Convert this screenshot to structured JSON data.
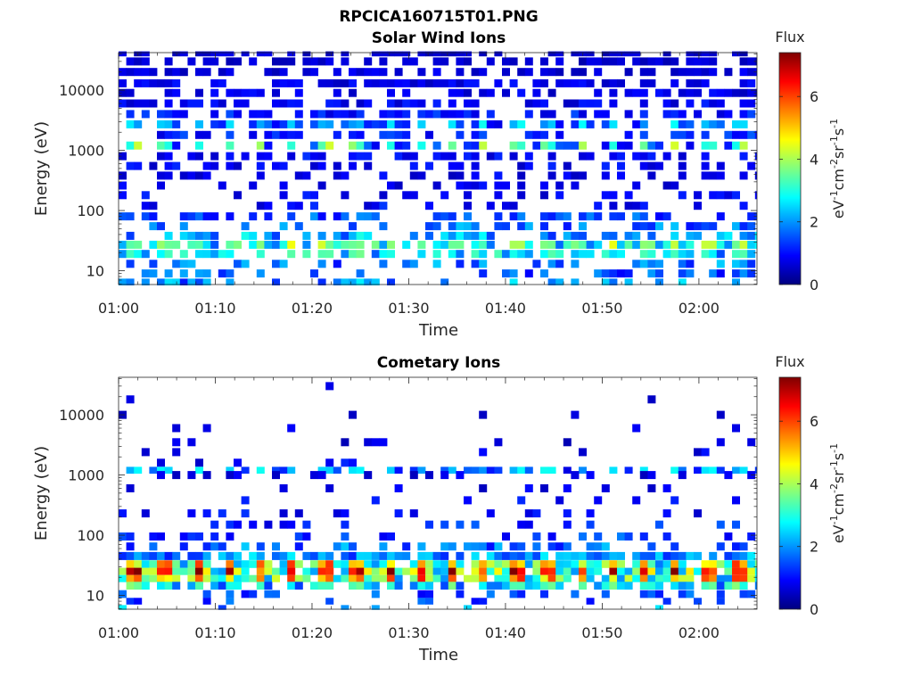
{
  "figure": {
    "title": "RPCICA160715T01.PNG"
  },
  "colormap": {
    "name": "jet",
    "low": "#00007f",
    "high": "#7f0000"
  },
  "chart_data": [
    {
      "type": "heatmap",
      "title": "Solar Wind Ions",
      "xlabel": "Time",
      "ylabel": "Energy (eV)",
      "x_ticks": [
        "01:00",
        "01:10",
        "01:20",
        "01:30",
        "01:40",
        "01:50",
        "02:00"
      ],
      "xlim": [
        "01:00",
        "02:06"
      ],
      "y_scale": "log",
      "y_ticks": [
        "10",
        "100",
        "1000",
        "10000"
      ],
      "ylim": [
        5.9,
        42000
      ],
      "colorbar": {
        "title": "Flux",
        "label_base": "eV",
        "label_parts": [
          "-1",
          "cm",
          "-2",
          "sr",
          "-1",
          "s",
          "-1"
        ],
        "range": [
          0,
          7.4
        ],
        "ticks": [
          "0",
          "2",
          "4",
          "6"
        ]
      },
      "peak_period_min": 3.3,
      "rows": [
        {
          "energy_ev": 40000,
          "level": 0.6,
          "fill": 0.48
        },
        {
          "energy_ev": 30000,
          "level": 0.6,
          "fill": 0.55
        },
        {
          "energy_ev": 20000,
          "level": 0.7,
          "fill": 0.58
        },
        {
          "energy_ev": 13000,
          "level": 0.8,
          "fill": 0.58
        },
        {
          "energy_ev": 9000,
          "level": 0.8,
          "fill": 0.56
        },
        {
          "energy_ev": 6000,
          "level": 0.9,
          "fill": 0.55
        },
        {
          "energy_ev": 4000,
          "level": 1.1,
          "fill": 0.55
        },
        {
          "energy_ev": 2700,
          "level": 1.3,
          "fill": 0.58,
          "peak": 2.4
        },
        {
          "energy_ev": 1800,
          "level": 1.2,
          "fill": 0.55
        },
        {
          "energy_ev": 1200,
          "level": 1.3,
          "fill": 0.55,
          "peak": 3.6
        },
        {
          "energy_ev": 800,
          "level": 1.0,
          "fill": 0.52
        },
        {
          "energy_ev": 550,
          "level": 0.9,
          "fill": 0.45
        },
        {
          "energy_ev": 380,
          "level": 0.8,
          "fill": 0.4
        },
        {
          "energy_ev": 260,
          "level": 0.8,
          "fill": 0.35
        },
        {
          "energy_ev": 180,
          "level": 0.9,
          "fill": 0.32
        },
        {
          "energy_ev": 120,
          "level": 1.0,
          "fill": 0.3
        },
        {
          "energy_ev": 80,
          "level": 1.5,
          "fill": 0.45
        },
        {
          "energy_ev": 55,
          "level": 1.8,
          "fill": 0.5
        },
        {
          "energy_ev": 38,
          "level": 2.2,
          "fill": 0.55
        },
        {
          "energy_ev": 27,
          "level": 2.8,
          "fill": 0.65,
          "peak": 3.8
        },
        {
          "energy_ev": 19,
          "level": 2.6,
          "fill": 0.55,
          "peak": 3.0
        },
        {
          "energy_ev": 13,
          "level": 1.8,
          "fill": 0.4
        },
        {
          "energy_ev": 9,
          "level": 1.6,
          "fill": 0.35
        },
        {
          "energy_ev": 6.5,
          "level": 2.0,
          "fill": 0.3
        }
      ]
    },
    {
      "type": "heatmap",
      "title": "Cometary Ions",
      "xlabel": "Time",
      "ylabel": "Energy (eV)",
      "x_ticks": [
        "01:00",
        "01:10",
        "01:20",
        "01:30",
        "01:40",
        "01:50",
        "02:00"
      ],
      "xlim": [
        "01:00",
        "02:06"
      ],
      "y_scale": "log",
      "y_ticks": [
        "10",
        "100",
        "1000",
        "10000"
      ],
      "ylim": [
        5.9,
        42000
      ],
      "colorbar": {
        "title": "Flux",
        "label_base": "eV",
        "label_parts": [
          "-1",
          "cm",
          "-2",
          "sr",
          "-1",
          "s",
          "-1"
        ],
        "range": [
          0,
          7.4
        ],
        "ticks": [
          "0",
          "2",
          "4",
          "6"
        ]
      },
      "peak_period_min": 3.3,
      "rows": [
        {
          "energy_ev": 30000,
          "level": 0.6,
          "fill": 0.02
        },
        {
          "energy_ev": 18000,
          "level": 0.6,
          "fill": 0.04
        },
        {
          "energy_ev": 10000,
          "level": 0.6,
          "fill": 0.06
        },
        {
          "energy_ev": 6000,
          "level": 0.7,
          "fill": 0.06
        },
        {
          "energy_ev": 3500,
          "level": 0.7,
          "fill": 0.07
        },
        {
          "energy_ev": 2400,
          "level": 0.8,
          "fill": 0.08
        },
        {
          "energy_ev": 1600,
          "level": 0.9,
          "fill": 0.1
        },
        {
          "energy_ev": 1200,
          "level": 1.3,
          "fill": 0.32,
          "peak": 2.4
        },
        {
          "energy_ev": 1000,
          "level": 0.8,
          "fill": 0.22
        },
        {
          "energy_ev": 600,
          "level": 0.8,
          "fill": 0.12
        },
        {
          "energy_ev": 380,
          "level": 0.9,
          "fill": 0.15
        },
        {
          "energy_ev": 230,
          "level": 1.0,
          "fill": 0.2
        },
        {
          "energy_ev": 150,
          "level": 1.2,
          "fill": 0.25
        },
        {
          "energy_ev": 95,
          "level": 1.4,
          "fill": 0.3
        },
        {
          "energy_ev": 65,
          "level": 1.8,
          "fill": 0.45
        },
        {
          "energy_ev": 45,
          "level": 2.0,
          "fill": 0.8
        },
        {
          "energy_ev": 33,
          "level": 3.2,
          "fill": 0.85,
          "peak": 5.2
        },
        {
          "energy_ev": 25,
          "level": 3.6,
          "fill": 0.9,
          "peak": 6.6
        },
        {
          "energy_ev": 19,
          "level": 3.3,
          "fill": 0.85,
          "peak": 5.4
        },
        {
          "energy_ev": 14.5,
          "level": 2.4,
          "fill": 0.65,
          "peak": 3.2
        },
        {
          "energy_ev": 10.5,
          "level": 1.6,
          "fill": 0.3
        },
        {
          "energy_ev": 8,
          "level": 1.4,
          "fill": 0.15
        },
        {
          "energy_ev": 6.3,
          "level": 2.0,
          "fill": 0.1
        }
      ]
    }
  ]
}
